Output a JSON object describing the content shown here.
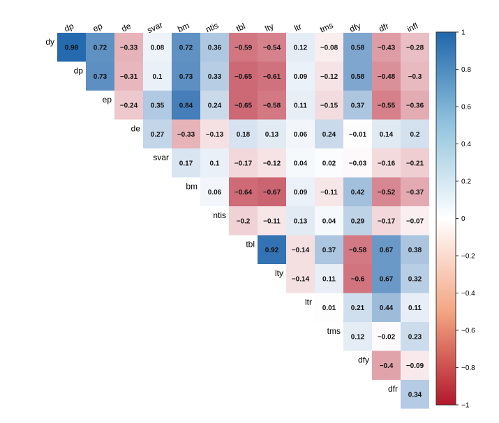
{
  "chart_data": {
    "type": "heatmap",
    "layout": "upper-triangle",
    "rows": [
      "dy",
      "dp",
      "ep",
      "de",
      "svar",
      "bm",
      "ntis",
      "tbl",
      "lty",
      "ltr",
      "tms",
      "dfy",
      "dfr"
    ],
    "columns": [
      "dp",
      "ep",
      "de",
      "svar",
      "bm",
      "ntis",
      "tbl",
      "lty",
      "ltr",
      "tms",
      "dfy",
      "dfr",
      "infl"
    ],
    "values": [
      [
        0.98,
        0.72,
        -0.33,
        0.08,
        0.72,
        0.36,
        -0.59,
        -0.54,
        0.12,
        -0.08,
        0.58,
        -0.43,
        -0.28
      ],
      [
        0.73,
        -0.31,
        0.1,
        0.73,
        0.33,
        -0.65,
        -0.61,
        0.09,
        -0.12,
        0.58,
        -0.48,
        -0.3
      ],
      [
        -0.24,
        0.35,
        0.84,
        0.24,
        -0.65,
        -0.58,
        0.11,
        -0.15,
        0.37,
        -0.55,
        -0.36
      ],
      [
        0.27,
        -0.33,
        -0.13,
        0.18,
        0.13,
        0.06,
        0.24,
        -0.01,
        0.14,
        0.2
      ],
      [
        0.17,
        0.1,
        -0.17,
        -0.12,
        0.04,
        0.02,
        -0.03,
        -0.16,
        -0.21
      ],
      [
        0.06,
        -0.64,
        -0.67,
        0.09,
        -0.11,
        0.42,
        -0.52,
        -0.37
      ],
      [
        -0.2,
        -0.11,
        0.13,
        0.04,
        0.29,
        -0.17,
        -0.07
      ],
      [
        0.92,
        -0.14,
        0.37,
        -0.58,
        0.67,
        0.38
      ],
      [
        -0.14,
        0.11,
        -0.6,
        0.67,
        0.32
      ],
      [
        0.01,
        0.21,
        0.44,
        0.11
      ],
      [
        0.12,
        -0.02,
        0.23
      ],
      [
        -0.4,
        -0.09
      ],
      [
        0.34
      ]
    ],
    "color_scale": {
      "min": -1,
      "max": 1,
      "low_color": "#b2182b",
      "mid_color": "#ffffff",
      "high_color": "#2166ac"
    },
    "legend": {
      "placement": "right",
      "ticks": [
        1,
        0.8,
        0.6,
        0.4,
        0.2,
        0,
        -0.2,
        -0.4,
        -0.6,
        -0.8,
        -1
      ],
      "tick_labels": [
        "1",
        "0.8",
        "0.6",
        "0.4",
        "0.2",
        "0",
        "−0.2",
        "−0.4",
        "−0.6",
        "−0.8",
        "−1"
      ]
    },
    "grid": false
  }
}
